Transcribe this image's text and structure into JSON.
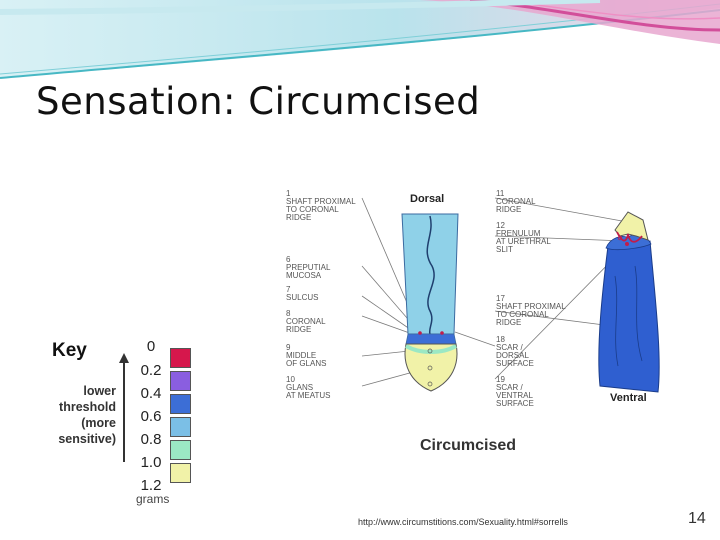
{
  "slide": {
    "title": "Sensation: Circumcised",
    "source_url": "http://www.circumstitions.com/Sexuality.html#sorrells",
    "page_number": "14"
  },
  "key": {
    "title": "Key",
    "note_lines": [
      "lower",
      "threshold",
      "(more",
      "sensitive)"
    ],
    "ticks": [
      "0",
      "0.2",
      "0.4",
      "0.6",
      "0.8",
      "1.0",
      "1.2"
    ],
    "unit": "grams",
    "swatch_colors": [
      "#d6174c",
      "#8a5ee0",
      "#3c6ed6",
      "#7bbfe6",
      "#9be8c4",
      "#f1f2a8"
    ]
  },
  "diagram": {
    "dorsal_label": "Dorsal",
    "ventral_label": "Ventral",
    "caption": "Circumcised",
    "left_labels": [
      {
        "id": "1",
        "lines": [
          "1",
          "SHAFT PROXIMAL",
          "TO CORONAL",
          "RIDGE"
        ]
      },
      {
        "id": "6",
        "lines": [
          "6",
          "PREPUTIAL",
          "MUCOSA"
        ]
      },
      {
        "id": "7",
        "lines": [
          "7",
          "SULCUS"
        ]
      },
      {
        "id": "8",
        "lines": [
          "8",
          "CORONAL",
          "RIDGE"
        ]
      },
      {
        "id": "9",
        "lines": [
          "9",
          "MIDDLE",
          "OF GLANS"
        ]
      },
      {
        "id": "10",
        "lines": [
          "10",
          "GLANS",
          "AT MEATUS"
        ]
      }
    ],
    "right_labels": [
      {
        "id": "11",
        "lines": [
          "11",
          "CORONAL",
          "RIDGE"
        ]
      },
      {
        "id": "12",
        "lines": [
          "12",
          "FRENULUM",
          "AT URETHRAL",
          "SLIT"
        ]
      },
      {
        "id": "17",
        "lines": [
          "17",
          "SHAFT PROXIMAL",
          "TO CORONAL",
          "RIDGE"
        ]
      },
      {
        "id": "18",
        "lines": [
          "18",
          "SCAR /",
          "DORSAL",
          "SURFACE"
        ]
      },
      {
        "id": "19",
        "lines": [
          "19",
          "SCAR /",
          "VENTRAL",
          "SURFACE"
        ]
      }
    ]
  },
  "colors": {
    "banner_teal": "#47b8c4",
    "banner_pink": "#d24e9a",
    "shaft_dorsal": "#8fd1e8",
    "shaft_ventral": "#2f5fd0",
    "glans": "#f1f2a8",
    "scar_red": "#c21d4a"
  }
}
